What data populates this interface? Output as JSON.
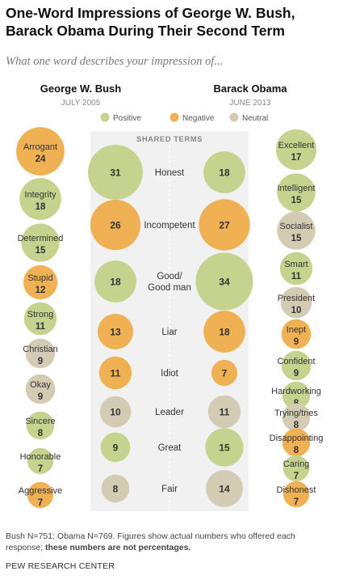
{
  "title": "One-Word Impressions of George W. Bush, Barack Obama During Their Second Term",
  "subtitle": "What one word describes your impression of...",
  "left_header": {
    "name": "George W. Bush",
    "date": "JULY 2005"
  },
  "right_header": {
    "name": "Barack Obama",
    "date": "JUNE 2013"
  },
  "shared_label": "SHARED TERMS",
  "colors": {
    "positive": "#c6d38f",
    "negative": "#f0b155",
    "neutral": "#d4cbb4"
  },
  "chart_data": {
    "type": "bubble",
    "legend": [
      {
        "label": "Positive",
        "category": "positive"
      },
      {
        "label": "Negative",
        "category": "negative"
      },
      {
        "label": "Neutral",
        "category": "neutral"
      }
    ],
    "bush_only": [
      {
        "word": "Arrogant",
        "count": 24,
        "category": "negative"
      },
      {
        "word": "Integrity",
        "count": 18,
        "category": "positive"
      },
      {
        "word": "Determined",
        "count": 15,
        "category": "positive"
      },
      {
        "word": "Stupid",
        "count": 12,
        "category": "negative"
      },
      {
        "word": "Strong",
        "count": 11,
        "category": "positive"
      },
      {
        "word": "Christian",
        "count": 9,
        "category": "neutral"
      },
      {
        "word": "Okay",
        "count": 9,
        "category": "neutral"
      },
      {
        "word": "Sincere",
        "count": 8,
        "category": "positive"
      },
      {
        "word": "Honorable",
        "count": 7,
        "category": "positive"
      },
      {
        "word": "Aggressive",
        "count": 7,
        "category": "negative"
      }
    ],
    "shared": [
      {
        "word": "Honest",
        "bush": 31,
        "obama": 18,
        "category": "positive"
      },
      {
        "word": "Incompetent",
        "bush": 26,
        "obama": 27,
        "category": "negative"
      },
      {
        "word": "Good/ Good man",
        "bush": 18,
        "obama": 34,
        "category": "positive"
      },
      {
        "word": "Liar",
        "bush": 13,
        "obama": 18,
        "category": "negative"
      },
      {
        "word": "Idiot",
        "bush": 11,
        "obama": 7,
        "category": "negative"
      },
      {
        "word": "Leader",
        "bush": 10,
        "obama": 11,
        "category": "neutral"
      },
      {
        "word": "Great",
        "bush": 9,
        "obama": 15,
        "category": "positive"
      },
      {
        "word": "Fair",
        "bush": 8,
        "obama": 14,
        "category": "neutral"
      }
    ],
    "obama_only": [
      {
        "word": "Excellent",
        "count": 17,
        "category": "positive"
      },
      {
        "word": "Intelligent",
        "count": 15,
        "category": "positive"
      },
      {
        "word": "Socialist",
        "count": 15,
        "category": "neutral"
      },
      {
        "word": "Smart",
        "count": 11,
        "category": "positive"
      },
      {
        "word": "President",
        "count": 10,
        "category": "neutral"
      },
      {
        "word": "Inept",
        "count": 9,
        "category": "negative"
      },
      {
        "word": "Confident",
        "count": 9,
        "category": "positive"
      },
      {
        "word": "Hardworking",
        "count": 8,
        "category": "positive"
      },
      {
        "word": "Trying/tries",
        "count": 8,
        "category": "neutral"
      },
      {
        "word": "Disappointing",
        "count": 8,
        "category": "negative"
      },
      {
        "word": "Caring",
        "count": 7,
        "category": "positive"
      },
      {
        "word": "Dishonest",
        "count": 7,
        "category": "negative"
      }
    ]
  },
  "footnote": "Bush N=751; Obama N=769.  Figures show actual numbers who offered each response; ",
  "footnote_bold": "these numbers are not percentages.",
  "source": "PEW RESEARCH CENTER"
}
